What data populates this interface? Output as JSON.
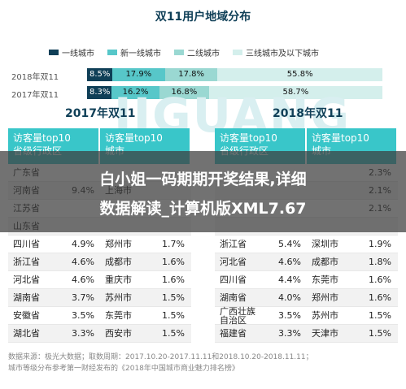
{
  "chart_data": [
    {
      "type": "bar",
      "stacked": true,
      "orientation": "horizontal",
      "title": "双11用户地域分布",
      "categories": [
        "2018年双11",
        "2017年双11"
      ],
      "series": [
        {
          "name": "一线城市",
          "values": [
            8.5,
            8.3
          ],
          "labels": [
            "8.5%",
            "8.3%"
          ],
          "color": "#0f3f57"
        },
        {
          "name": "新一线城市",
          "values": [
            17.9,
            16.2
          ],
          "labels": [
            "17.9%",
            "16.2%"
          ],
          "color": "#57c7c9"
        },
        {
          "name": "二线城市",
          "values": [
            17.8,
            16.8
          ],
          "labels": [
            "17.8%",
            "16.8%"
          ],
          "color": "#9ad8d2"
        },
        {
          "name": "三线城市及以下城市",
          "values": [
            55.8,
            58.7
          ],
          "labels": [
            "55.8%",
            "58.7%"
          ],
          "color": "#d4efec"
        }
      ],
      "xlim": [
        0,
        100
      ]
    },
    {
      "type": "table",
      "title": "2017年双11",
      "headers": [
        "访客量top10 省级行政区",
        "访客量top10 城市"
      ],
      "rows": [
        [
          "广东省",
          "",
          "",
          ""
        ],
        [
          "河南省",
          "9.4%",
          "上海市",
          ""
        ],
        [
          "江苏省",
          "",
          "",
          ""
        ],
        [
          "山东省",
          "",
          "",
          ""
        ],
        [
          "四川省",
          "4.9%",
          "郑州市",
          "1.7%"
        ],
        [
          "浙江省",
          "4.6%",
          "成都市",
          "1.6%"
        ],
        [
          "河北省",
          "4.6%",
          "重庆市",
          "1.6%"
        ],
        [
          "湖南省",
          "3.7%",
          "苏州市",
          "1.5%"
        ],
        [
          "安徽省",
          "3.5%",
          "东莞市",
          "1.5%"
        ],
        [
          "湖北省",
          "3.3%",
          "西安市",
          "1.5%"
        ]
      ]
    },
    {
      "type": "table",
      "title": "2018年双11",
      "headers": [
        "访客量top10 省级行政区",
        "访客量top10 城市"
      ],
      "rows": [
        [
          "",
          "",
          "",
          "2.3%"
        ],
        [
          "",
          "",
          "",
          "2.1%"
        ],
        [
          "",
          "",
          "",
          "2.1%"
        ],
        [
          "",
          "",
          "",
          ""
        ],
        [
          "浙江省",
          "5.4%",
          "深圳市",
          "1.9%"
        ],
        [
          "河北省",
          "4.6%",
          "成都市",
          "1.8%"
        ],
        [
          "四川省",
          "4.4%",
          "东莞市",
          "1.6%"
        ],
        [
          "湖南省",
          "4.0%",
          "郑州市",
          "1.6%"
        ],
        [
          "广西壮族 自治区",
          "3.5%",
          "苏州市",
          "1.5%"
        ],
        [
          "福建省",
          "3.3%",
          "天津市",
          "1.5%"
        ]
      ]
    }
  ],
  "header": {
    "title": "双11用户地域分布"
  },
  "watermark": "JIGUANG",
  "legend": [
    {
      "label": "一线城市",
      "color": "#0f3f57"
    },
    {
      "label": "新一线城市",
      "color": "#57c7c9"
    },
    {
      "label": "二线城市",
      "color": "#9ad8d2"
    },
    {
      "label": "三线城市及以下城市",
      "color": "#d4efec"
    }
  ],
  "years": {
    "left": "2017年双11",
    "right": "2018年双11"
  },
  "table_headers": {
    "left_province": [
      "访客量top10",
      "省级行政区"
    ],
    "left_city": [
      "访客量top10",
      "城市"
    ],
    "right_province": [
      "访客量top10",
      "省级行政区"
    ],
    "right_city": [
      "访客量top10",
      "城市"
    ]
  },
  "banner": {
    "line1": "白小姐一码期期开奖结果,详细",
    "line2": "数据解读_计算机版XML7.67"
  },
  "footer": {
    "line1": "数据来源：极光大数据；取数周期：2017.10.20-2017.11.11和2018.10.20-2018.11.11；",
    "line2": "城市等级分布参考第一财经发布的《2018年中国城市商业魅力排名榜》"
  }
}
